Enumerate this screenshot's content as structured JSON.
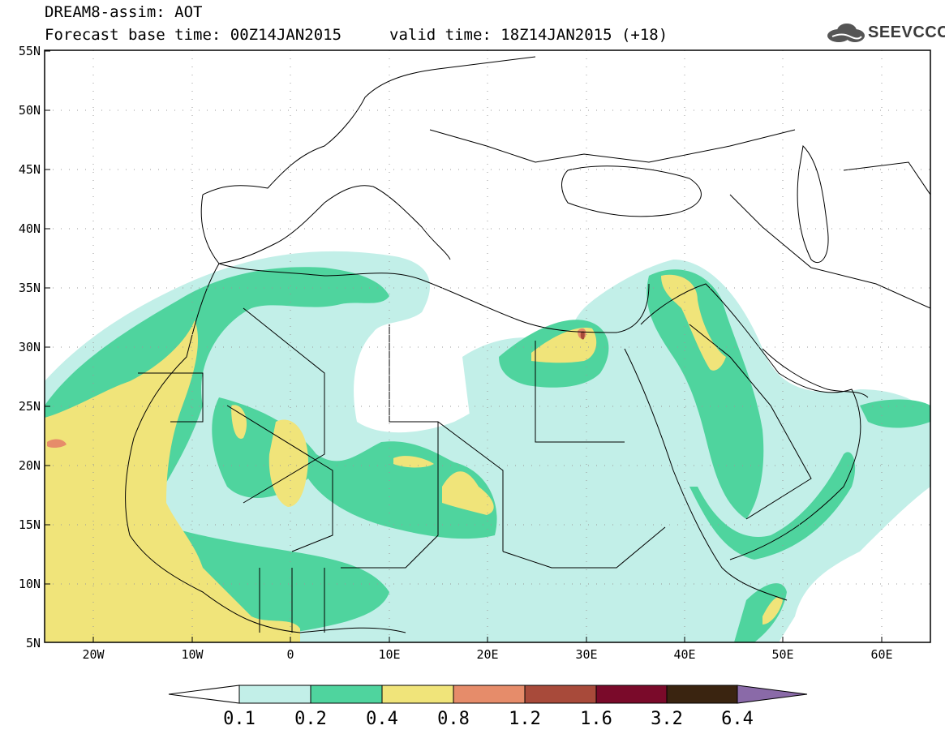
{
  "header": {
    "title": "DREAM8-assim: AOT",
    "base_time": "Forecast base time: 00Z14JAN2015",
    "valid_time": "valid time: 18Z14JAN2015 (+18)",
    "logo_text": "SEEVCCC"
  },
  "map": {
    "lat_labels": [
      "55N",
      "50N",
      "45N",
      "40N",
      "35N",
      "30N",
      "25N",
      "20N",
      "15N",
      "10N",
      "5N"
    ],
    "lon_labels": [
      "20W",
      "10W",
      "0",
      "10E",
      "20E",
      "30E",
      "40E",
      "50E",
      "60E"
    ],
    "colors": {
      "c1": "#c2efe8",
      "c2": "#4fd49e",
      "c3": "#f0e47a",
      "c4": "#e68c6a",
      "c5": "#a84a3a",
      "c6": "#7a0a2a",
      "c7": "#3a2410",
      "c8": "#8a6aa8",
      "border": "#000000"
    }
  },
  "colorbar": {
    "labels": [
      "0.1",
      "0.2",
      "0.4",
      "0.8",
      "1.2",
      "1.6",
      "3.2",
      "6.4"
    ],
    "colors": [
      "#ffffff",
      "#c2efe8",
      "#4fd49e",
      "#f0e47a",
      "#e68c6a",
      "#a84a3a",
      "#7a0a2a",
      "#3a2410",
      "#8a6aa8"
    ]
  }
}
